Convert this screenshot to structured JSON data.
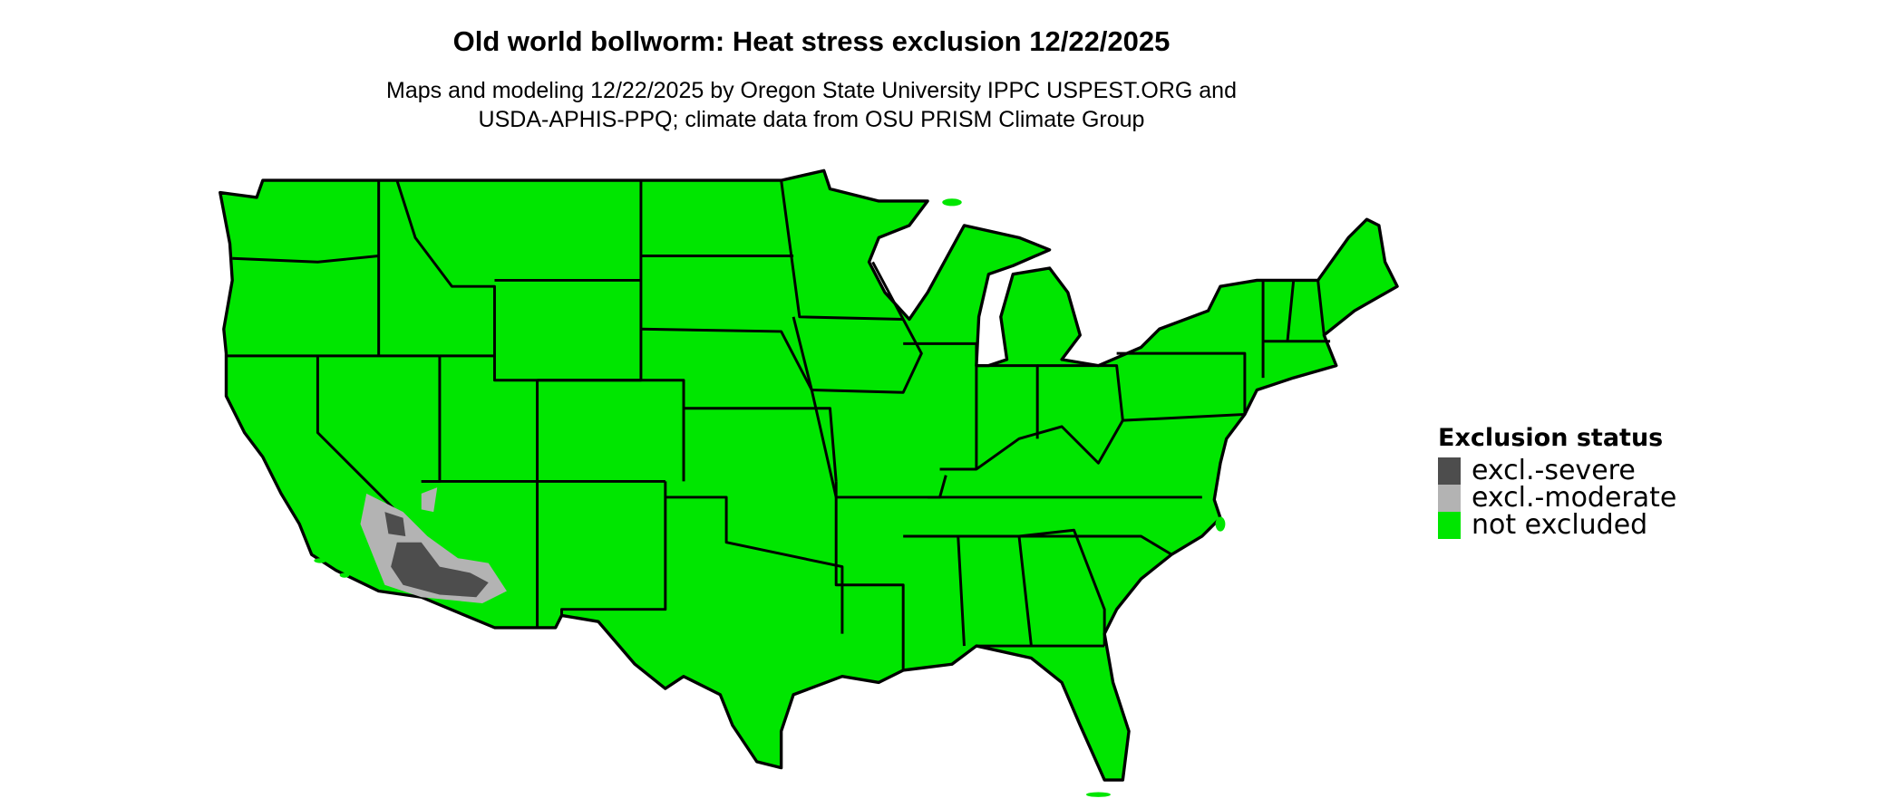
{
  "title": "Old world bollworm: Heat stress exclusion 12/22/2025",
  "subtitle_line1": "Maps and modeling 12/22/2025 by Oregon State University IPPC USPEST.ORG and",
  "subtitle_line2": "USDA-APHIS-PPQ; climate data from OSU PRISM Climate Group",
  "legend": {
    "title": "Exclusion status",
    "items": [
      {
        "label": "excl.-severe",
        "color": "#4d4d4d"
      },
      {
        "label": "excl.-moderate",
        "color": "#b3b3b3"
      },
      {
        "label": "not excluded",
        "color": "#00e600"
      }
    ]
  },
  "map": {
    "region": "Contiguous United States",
    "fill_default": "#00e600",
    "border_color": "#000000"
  }
}
